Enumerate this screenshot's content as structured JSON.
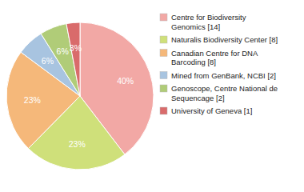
{
  "chart_data": {
    "type": "pie",
    "categories": [
      "Centre for Biodiversity\nGenomics [14]",
      "Naturalis Biodiversity Center [8]",
      "Canadian Centre for DNA\nBarcoding [8]",
      "Mined from GenBank, NCBI [2]",
      "Genoscope, Centre National de\nSequencage [2]",
      "University of Geneva [1]"
    ],
    "values": [
      40,
      23,
      23,
      6,
      6,
      3
    ],
    "value_labels": [
      "40%",
      "23%",
      "23%",
      "6%",
      "6%",
      "3%"
    ],
    "data_labels": true,
    "colors": [
      "#f2a8a5",
      "#cfe07a",
      "#f5b87a",
      "#a8c4e0",
      "#b0cc78",
      "#d96b6b"
    ],
    "legend": "right"
  }
}
